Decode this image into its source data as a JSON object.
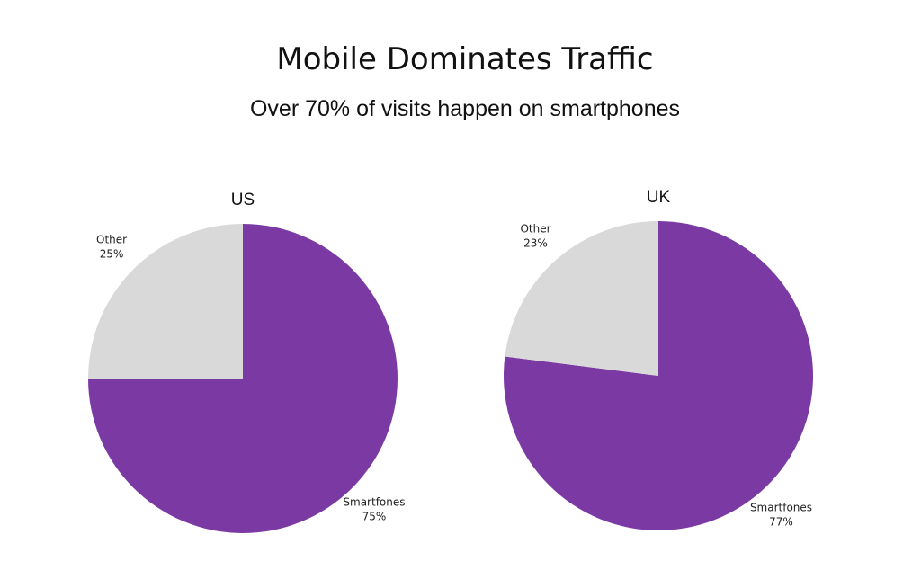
{
  "title": "Mobile Dominates Traffic",
  "subtitle": "Over 70% of visits happen on smartphones",
  "chart_data": [
    {
      "type": "pie",
      "title": "US",
      "categories": [
        "Smartfones",
        "Other"
      ],
      "values": [
        75,
        25
      ],
      "value_labels": [
        "75%",
        "25%"
      ],
      "colors": [
        "#7b3aa3",
        "#d9d9d9"
      ]
    },
    {
      "type": "pie",
      "title": "UK",
      "categories": [
        "Smartfones",
        "Other"
      ],
      "values": [
        77,
        23
      ],
      "value_labels": [
        "77%",
        "23%"
      ],
      "colors": [
        "#7b3aa3",
        "#d9d9d9"
      ]
    }
  ]
}
